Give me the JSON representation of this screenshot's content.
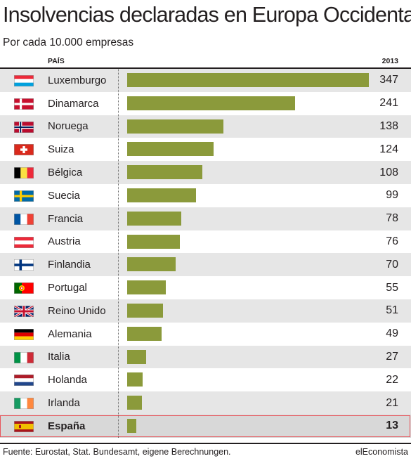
{
  "chart_data": {
    "type": "bar",
    "title": "Insolvencias declaradas en Europa Occidental",
    "subtitle": "Por cada 10.000 empresas",
    "column_headers": {
      "category": "PAÍS",
      "value": "2013"
    },
    "categories": [
      "Luxemburgo",
      "Dinamarca",
      "Noruega",
      "Suiza",
      "Bélgica",
      "Suecia",
      "Francia",
      "Austria",
      "Finlandia",
      "Portugal",
      "Reino Unido",
      "Alemania",
      "Italia",
      "Holanda",
      "Irlanda",
      "España"
    ],
    "values": [
      347,
      241,
      138,
      124,
      108,
      99,
      78,
      76,
      70,
      55,
      51,
      49,
      27,
      22,
      21,
      13
    ],
    "flags": [
      "luxembourg-flag-icon",
      "denmark-flag-icon",
      "norway-flag-icon",
      "switzerland-flag-icon",
      "belgium-flag-icon",
      "sweden-flag-icon",
      "france-flag-icon",
      "austria-flag-icon",
      "finland-flag-icon",
      "portugal-flag-icon",
      "uk-flag-icon",
      "germany-flag-icon",
      "italy-flag-icon",
      "netherlands-flag-icon",
      "ireland-flag-icon",
      "spain-flag-icon"
    ],
    "highlight": "España",
    "xlim": [
      0,
      347
    ],
    "bar_color": "#8b9a3b",
    "highlight_border_color": "#e8545b",
    "source": "Fuente: Eurostat, Stat. Bundesamt, eigene Berechnungen.",
    "brand": "elEconomista"
  }
}
